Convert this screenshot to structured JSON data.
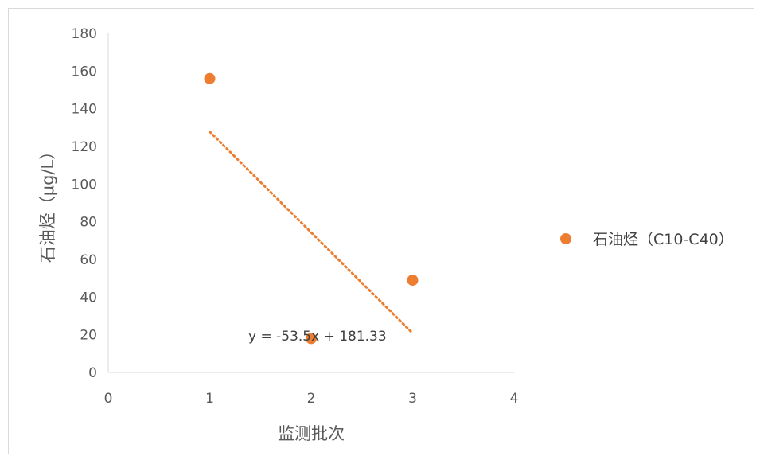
{
  "chart_data": {
    "type": "scatter",
    "title": "",
    "xlabel": "监测批次",
    "ylabel": "石油烃（μg/L）",
    "xlim": [
      0,
      4
    ],
    "ylim": [
      0,
      180
    ],
    "xticks": [
      0,
      1,
      2,
      3,
      4
    ],
    "yticks": [
      0,
      20,
      40,
      60,
      80,
      100,
      120,
      140,
      160,
      180
    ],
    "grid": false,
    "legend_position": "right",
    "series": [
      {
        "name": "石油烃（C10-C40）",
        "color": "#ED7D31",
        "points": [
          {
            "x": 1,
            "y": 156
          },
          {
            "x": 2,
            "y": 18
          },
          {
            "x": 3,
            "y": 49
          }
        ]
      }
    ],
    "trendline": {
      "type": "linear",
      "slope": -53.5,
      "intercept": 181.33,
      "x_range": [
        1,
        3
      ],
      "style": "dotted",
      "color": "#ED7D31",
      "equation_label": "y = -53.5x + 181.33"
    }
  }
}
